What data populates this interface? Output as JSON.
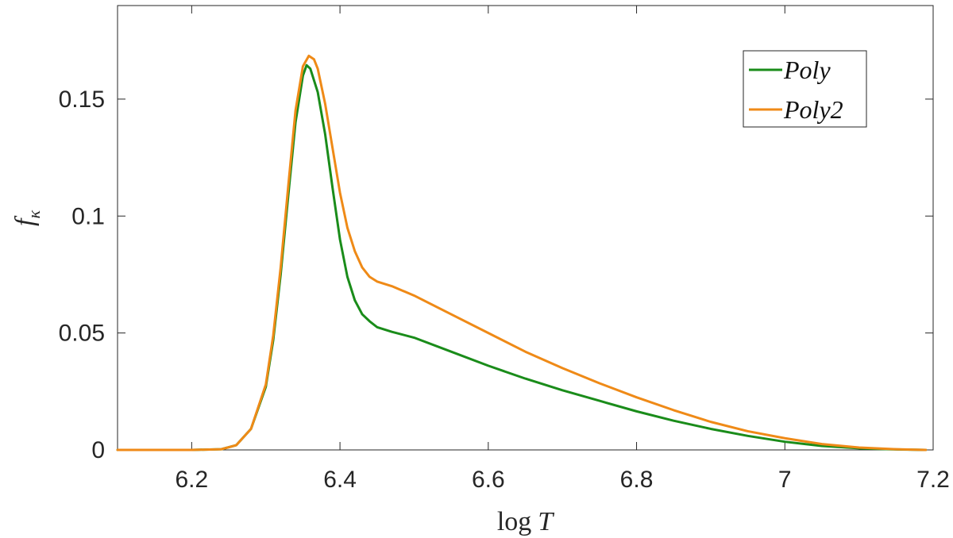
{
  "chart_data": {
    "type": "line",
    "xlabel": "log T",
    "ylabel": "f_κ",
    "xlim": [
      6.1,
      7.2
    ],
    "ylim": [
      0,
      0.19
    ],
    "x_ticks": [
      "6.2",
      "6.4",
      "6.6",
      "6.8",
      "7",
      "7.2"
    ],
    "y_ticks": [
      "0",
      "0.05",
      "0.1",
      "0.15"
    ],
    "grid": false,
    "legend_position": "top-right",
    "series": [
      {
        "name": "Poly",
        "color": "#1a8c1a",
        "x": [
          6.1,
          6.2,
          6.24,
          6.26,
          6.28,
          6.3,
          6.31,
          6.32,
          6.33,
          6.34,
          6.35,
          6.355,
          6.36,
          6.37,
          6.38,
          6.39,
          6.4,
          6.41,
          6.42,
          6.43,
          6.44,
          6.45,
          6.47,
          6.5,
          6.55,
          6.6,
          6.65,
          6.7,
          6.75,
          6.8,
          6.85,
          6.9,
          6.95,
          7.0,
          7.05,
          7.1,
          7.15,
          7.19
        ],
        "y": [
          0,
          0,
          0.0003,
          0.002,
          0.009,
          0.027,
          0.047,
          0.075,
          0.108,
          0.14,
          0.16,
          0.1645,
          0.163,
          0.153,
          0.135,
          0.112,
          0.09,
          0.074,
          0.064,
          0.058,
          0.055,
          0.0525,
          0.0505,
          0.048,
          0.042,
          0.036,
          0.0305,
          0.0255,
          0.021,
          0.0165,
          0.0125,
          0.009,
          0.006,
          0.0035,
          0.0017,
          0.0007,
          0.0002,
          0
        ]
      },
      {
        "name": "Poly2",
        "color": "#ef8a17",
        "x": [
          6.1,
          6.2,
          6.24,
          6.26,
          6.28,
          6.3,
          6.31,
          6.32,
          6.33,
          6.34,
          6.35,
          6.358,
          6.365,
          6.37,
          6.38,
          6.39,
          6.4,
          6.41,
          6.42,
          6.43,
          6.44,
          6.45,
          6.47,
          6.5,
          6.55,
          6.6,
          6.65,
          6.7,
          6.75,
          6.8,
          6.85,
          6.9,
          6.95,
          7.0,
          7.05,
          7.1,
          7.15,
          7.19
        ],
        "y": [
          0,
          0,
          0.0003,
          0.002,
          0.009,
          0.028,
          0.049,
          0.078,
          0.112,
          0.145,
          0.164,
          0.1685,
          0.167,
          0.163,
          0.148,
          0.129,
          0.11,
          0.095,
          0.085,
          0.078,
          0.074,
          0.072,
          0.07,
          0.066,
          0.058,
          0.05,
          0.042,
          0.035,
          0.0285,
          0.0225,
          0.017,
          0.012,
          0.008,
          0.005,
          0.0025,
          0.001,
          0.0003,
          0
        ]
      }
    ]
  }
}
